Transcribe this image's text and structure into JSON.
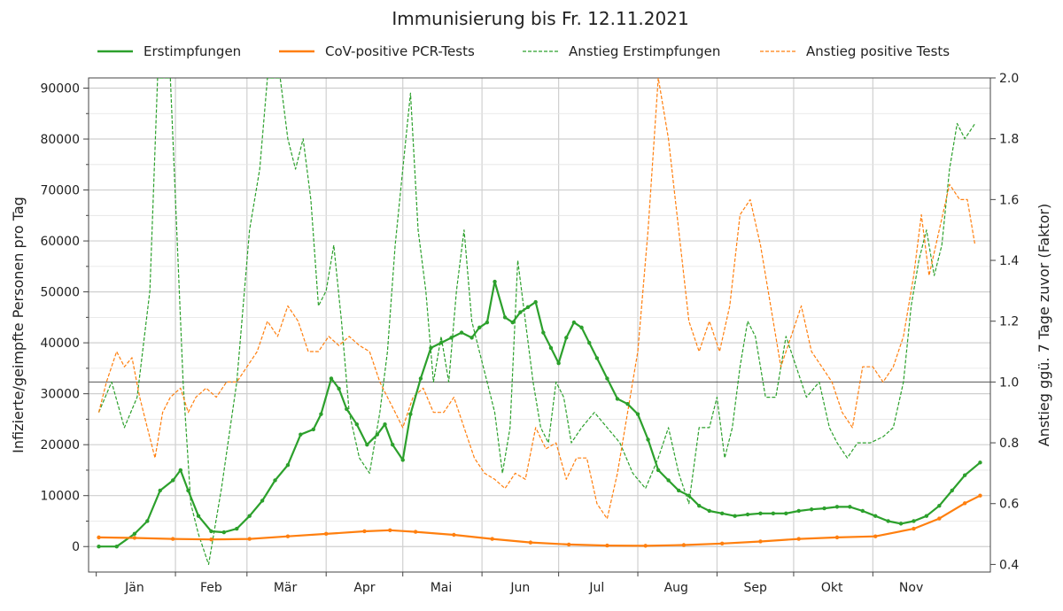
{
  "chart_data": {
    "type": "line",
    "title": "Immunisierung bis Fr. 12.11.2021",
    "ylabel": "Infizierte/geimpfte Personen pro Tag",
    "y2label": "Anstieg ggü. 7 Tage zuvor (Faktor)",
    "ylim": [
      -5000,
      92000
    ],
    "y2lim": [
      0.375,
      2.0
    ],
    "yticks": [
      "0",
      "10000",
      "20000",
      "30000",
      "40000",
      "50000",
      "60000",
      "70000",
      "80000",
      "90000"
    ],
    "y2ticks": [
      "0.4",
      "0.6",
      "0.8",
      "1.0",
      "1.2",
      "1.4",
      "1.6",
      "1.8",
      "2.0"
    ],
    "months": [
      "Jän",
      "Feb",
      "Mär",
      "Apr",
      "Mai",
      "Jun",
      "Jul",
      "Aug",
      "Sep",
      "Okt",
      "Nov"
    ],
    "grid": true,
    "legend_position": "top",
    "reference_line": 1.0,
    "series": [
      {
        "name": "Erstimpfungen",
        "axis": "left",
        "style": "solid",
        "color": "#2ca02c",
        "points": [
          [
            1,
            0
          ],
          [
            8,
            0
          ],
          [
            15,
            2500
          ],
          [
            20,
            5000
          ],
          [
            25,
            11000
          ],
          [
            30,
            13000
          ],
          [
            33,
            15000
          ],
          [
            36,
            11000
          ],
          [
            40,
            6000
          ],
          [
            45,
            3000
          ],
          [
            50,
            2800
          ],
          [
            55,
            3500
          ],
          [
            60,
            6000
          ],
          [
            65,
            9000
          ],
          [
            70,
            13000
          ],
          [
            75,
            16000
          ],
          [
            80,
            22000
          ],
          [
            85,
            23000
          ],
          [
            88,
            26000
          ],
          [
            92,
            33000
          ],
          [
            95,
            31000
          ],
          [
            98,
            27000
          ],
          [
            102,
            24000
          ],
          [
            106,
            20000
          ],
          [
            110,
            22000
          ],
          [
            113,
            24000
          ],
          [
            116,
            20000
          ],
          [
            120,
            17000
          ],
          [
            123,
            26000
          ],
          [
            127,
            33000
          ],
          [
            131,
            39000
          ],
          [
            135,
            40000
          ],
          [
            139,
            41000
          ],
          [
            143,
            42000
          ],
          [
            147,
            41000
          ],
          [
            150,
            43000
          ],
          [
            153,
            44000
          ],
          [
            156,
            52000
          ],
          [
            160,
            45000
          ],
          [
            163,
            44000
          ],
          [
            166,
            46000
          ],
          [
            169,
            47000
          ],
          [
            172,
            48000
          ],
          [
            175,
            42000
          ],
          [
            178,
            39000
          ],
          [
            181,
            36000
          ],
          [
            184,
            41000
          ],
          [
            187,
            44000
          ],
          [
            190,
            43000
          ],
          [
            193,
            40000
          ],
          [
            196,
            37000
          ],
          [
            200,
            33000
          ],
          [
            204,
            29000
          ],
          [
            208,
            28000
          ],
          [
            212,
            26000
          ],
          [
            216,
            21000
          ],
          [
            220,
            15000
          ],
          [
            224,
            13000
          ],
          [
            228,
            11000
          ],
          [
            232,
            10000
          ],
          [
            236,
            8000
          ],
          [
            240,
            7000
          ],
          [
            245,
            6500
          ],
          [
            250,
            6000
          ],
          [
            255,
            6300
          ],
          [
            260,
            6500
          ],
          [
            265,
            6500
          ],
          [
            270,
            6500
          ],
          [
            275,
            7000
          ],
          [
            280,
            7300
          ],
          [
            285,
            7500
          ],
          [
            290,
            7800
          ],
          [
            295,
            7800
          ],
          [
            300,
            7000
          ],
          [
            305,
            6000
          ],
          [
            310,
            5000
          ],
          [
            315,
            4500
          ],
          [
            320,
            5000
          ],
          [
            325,
            6000
          ],
          [
            330,
            8000
          ],
          [
            335,
            11000
          ],
          [
            340,
            14000
          ],
          [
            346,
            16500
          ]
        ]
      },
      {
        "name": "CoV-positive PCR-Tests",
        "axis": "left",
        "style": "solid",
        "color": "#ff7f0e",
        "points": [
          [
            1,
            1800
          ],
          [
            15,
            1700
          ],
          [
            30,
            1500
          ],
          [
            45,
            1400
          ],
          [
            60,
            1500
          ],
          [
            75,
            2000
          ],
          [
            90,
            2500
          ],
          [
            105,
            3000
          ],
          [
            115,
            3200
          ],
          [
            125,
            2900
          ],
          [
            140,
            2300
          ],
          [
            155,
            1500
          ],
          [
            170,
            800
          ],
          [
            185,
            400
          ],
          [
            200,
            200
          ],
          [
            215,
            150
          ],
          [
            230,
            300
          ],
          [
            245,
            600
          ],
          [
            260,
            1000
          ],
          [
            275,
            1500
          ],
          [
            290,
            1800
          ],
          [
            305,
            2000
          ],
          [
            320,
            3500
          ],
          [
            330,
            5500
          ],
          [
            340,
            8500
          ],
          [
            346,
            10000
          ]
        ]
      },
      {
        "name": "Anstieg Erstimpfungen",
        "axis": "right",
        "style": "dashed",
        "color": "#2ca02c",
        "points": [
          [
            1,
            0.9
          ],
          [
            6,
            1.0
          ],
          [
            11,
            0.85
          ],
          [
            16,
            0.95
          ],
          [
            21,
            1.3
          ],
          [
            24,
            2.0
          ],
          [
            29,
            2.0
          ],
          [
            31,
            1.6
          ],
          [
            34,
            1.0
          ],
          [
            37,
            0.6
          ],
          [
            40,
            0.5
          ],
          [
            44,
            0.4
          ],
          [
            49,
            0.65
          ],
          [
            55,
            1.0
          ],
          [
            60,
            1.5
          ],
          [
            64,
            1.7
          ],
          [
            67,
            2.0
          ],
          [
            72,
            2.0
          ],
          [
            75,
            1.8
          ],
          [
            78,
            1.7
          ],
          [
            81,
            1.8
          ],
          [
            84,
            1.6
          ],
          [
            87,
            1.25
          ],
          [
            90,
            1.3
          ],
          [
            93,
            1.45
          ],
          [
            96,
            1.2
          ],
          [
            99,
            0.9
          ],
          [
            103,
            0.75
          ],
          [
            107,
            0.7
          ],
          [
            111,
            0.9
          ],
          [
            114,
            1.1
          ],
          [
            117,
            1.45
          ],
          [
            120,
            1.7
          ],
          [
            123,
            1.95
          ],
          [
            126,
            1.5
          ],
          [
            129,
            1.3
          ],
          [
            132,
            1.0
          ],
          [
            135,
            1.15
          ],
          [
            138,
            1.0
          ],
          [
            141,
            1.3
          ],
          [
            144,
            1.5
          ],
          [
            147,
            1.2
          ],
          [
            150,
            1.1
          ],
          [
            153,
            1.0
          ],
          [
            156,
            0.9
          ],
          [
            159,
            0.7
          ],
          [
            162,
            0.85
          ],
          [
            165,
            1.4
          ],
          [
            168,
            1.2
          ],
          [
            171,
            1.0
          ],
          [
            174,
            0.85
          ],
          [
            177,
            0.8
          ],
          [
            180,
            1.0
          ],
          [
            183,
            0.95
          ],
          [
            186,
            0.8
          ],
          [
            190,
            0.85
          ],
          [
            195,
            0.9
          ],
          [
            200,
            0.85
          ],
          [
            205,
            0.8
          ],
          [
            210,
            0.7
          ],
          [
            215,
            0.65
          ],
          [
            220,
            0.75
          ],
          [
            224,
            0.85
          ],
          [
            228,
            0.7
          ],
          [
            232,
            0.6
          ],
          [
            236,
            0.85
          ],
          [
            240,
            0.85
          ],
          [
            243,
            0.95
          ],
          [
            246,
            0.75
          ],
          [
            249,
            0.85
          ],
          [
            252,
            1.05
          ],
          [
            255,
            1.2
          ],
          [
            258,
            1.15
          ],
          [
            262,
            0.95
          ],
          [
            266,
            0.95
          ],
          [
            270,
            1.15
          ],
          [
            274,
            1.05
          ],
          [
            278,
            0.95
          ],
          [
            283,
            1.0
          ],
          [
            287,
            0.85
          ],
          [
            290,
            0.8
          ],
          [
            294,
            0.75
          ],
          [
            298,
            0.8
          ],
          [
            303,
            0.8
          ],
          [
            308,
            0.82
          ],
          [
            312,
            0.85
          ],
          [
            316,
            1.0
          ],
          [
            319,
            1.25
          ],
          [
            322,
            1.4
          ],
          [
            325,
            1.5
          ],
          [
            328,
            1.35
          ],
          [
            331,
            1.45
          ],
          [
            334,
            1.7
          ],
          [
            337,
            1.85
          ],
          [
            340,
            1.8
          ],
          [
            344,
            1.85
          ]
        ]
      },
      {
        "name": "Anstieg positive Tests",
        "axis": "right",
        "style": "dashed",
        "color": "#ff7f0e",
        "points": [
          [
            1,
            0.9
          ],
          [
            4,
            1.0
          ],
          [
            8,
            1.1
          ],
          [
            11,
            1.05
          ],
          [
            14,
            1.08
          ],
          [
            17,
            0.95
          ],
          [
            20,
            0.85
          ],
          [
            23,
            0.75
          ],
          [
            26,
            0.9
          ],
          [
            29,
            0.95
          ],
          [
            33,
            0.98
          ],
          [
            36,
            0.9
          ],
          [
            39,
            0.95
          ],
          [
            43,
            0.98
          ],
          [
            47,
            0.95
          ],
          [
            51,
            1.0
          ],
          [
            55,
            1.0
          ],
          [
            59,
            1.05
          ],
          [
            63,
            1.1
          ],
          [
            67,
            1.2
          ],
          [
            71,
            1.15
          ],
          [
            75,
            1.25
          ],
          [
            79,
            1.2
          ],
          [
            83,
            1.1
          ],
          [
            87,
            1.1
          ],
          [
            91,
            1.15
          ],
          [
            95,
            1.12
          ],
          [
            99,
            1.15
          ],
          [
            103,
            1.12
          ],
          [
            107,
            1.1
          ],
          [
            111,
            1.0
          ],
          [
            114,
            0.95
          ],
          [
            117,
            0.9
          ],
          [
            120,
            0.85
          ],
          [
            124,
            0.95
          ],
          [
            128,
            0.98
          ],
          [
            132,
            0.9
          ],
          [
            136,
            0.9
          ],
          [
            140,
            0.95
          ],
          [
            144,
            0.85
          ],
          [
            148,
            0.75
          ],
          [
            152,
            0.7
          ],
          [
            156,
            0.68
          ],
          [
            160,
            0.65
          ],
          [
            164,
            0.7
          ],
          [
            168,
            0.68
          ],
          [
            172,
            0.85
          ],
          [
            176,
            0.78
          ],
          [
            180,
            0.8
          ],
          [
            184,
            0.68
          ],
          [
            188,
            0.75
          ],
          [
            192,
            0.75
          ],
          [
            196,
            0.6
          ],
          [
            200,
            0.55
          ],
          [
            204,
            0.7
          ],
          [
            208,
            0.9
          ],
          [
            212,
            1.1
          ],
          [
            216,
            1.5
          ],
          [
            220,
            2.0
          ],
          [
            224,
            1.8
          ],
          [
            228,
            1.5
          ],
          [
            232,
            1.2
          ],
          [
            236,
            1.1
          ],
          [
            240,
            1.2
          ],
          [
            244,
            1.1
          ],
          [
            248,
            1.25
          ],
          [
            252,
            1.55
          ],
          [
            256,
            1.6
          ],
          [
            260,
            1.45
          ],
          [
            264,
            1.25
          ],
          [
            268,
            1.05
          ],
          [
            272,
            1.15
          ],
          [
            276,
            1.25
          ],
          [
            280,
            1.1
          ],
          [
            284,
            1.05
          ],
          [
            288,
            1.0
          ],
          [
            292,
            0.9
          ],
          [
            296,
            0.85
          ],
          [
            300,
            1.05
          ],
          [
            304,
            1.05
          ],
          [
            308,
            1.0
          ],
          [
            312,
            1.05
          ],
          [
            316,
            1.15
          ],
          [
            320,
            1.35
          ],
          [
            323,
            1.55
          ],
          [
            326,
            1.35
          ],
          [
            330,
            1.5
          ],
          [
            334,
            1.65
          ],
          [
            338,
            1.6
          ],
          [
            341,
            1.6
          ],
          [
            344,
            1.45
          ]
        ]
      }
    ]
  }
}
